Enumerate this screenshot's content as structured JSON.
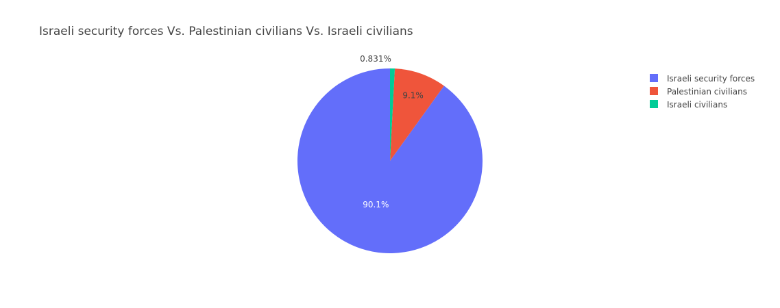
{
  "chart_data": {
    "type": "pie",
    "title": "Israeli security forces Vs. Palestinian civilians Vs. Israeli civilians",
    "labels": [
      "Israeli security forces",
      "Palestinian civilians",
      "Israeli civilians"
    ],
    "values": [
      90.1,
      9.1,
      0.831
    ],
    "percent_labels": [
      "90.1%",
      "9.1%",
      "0.831%"
    ],
    "colors": [
      "#636efa",
      "#EF553B",
      "#00cc96"
    ],
    "direction": "counterclockwise",
    "start": "top",
    "legend_position": "top-right",
    "label_colors": [
      "#ffffff",
      "#444444",
      "#444444"
    ]
  }
}
